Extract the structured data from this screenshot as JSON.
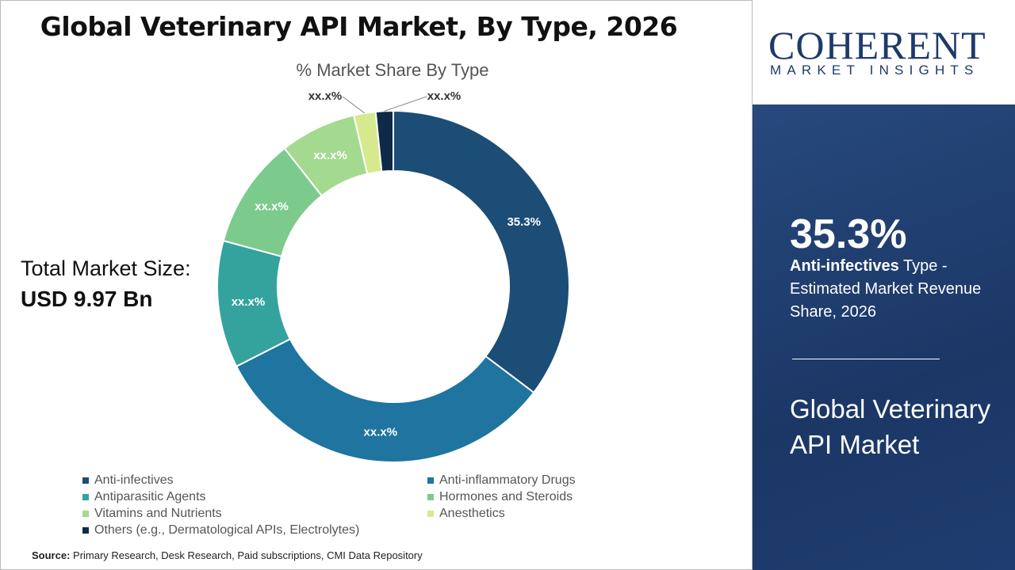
{
  "header": {
    "title": "Global Veterinary API Market, By Type, 2026"
  },
  "total": {
    "label": "Total Market Size:",
    "value": "USD 9.97 Bn"
  },
  "source": {
    "label": "Source:",
    "text": "Primary Research, Desk Research, Paid subscriptions, CMI Data Repository"
  },
  "logo": {
    "name": "COHERENT",
    "tagline": "MARKET INSIGHTS"
  },
  "panel": {
    "value": "35.3%",
    "segment": "Anti-infectives",
    "desc": "Type - Estimated Market Revenue Share, 2026",
    "market": "Global Veterinary API Market"
  },
  "chart_data": {
    "type": "pie",
    "donut": true,
    "title": "% Market Share By Type",
    "categories": [
      "Anti-infectives",
      "Anti-inflammatory Drugs",
      "Antiparasitic Agents",
      "Hormones and Steroids",
      "Vitamins and Nutrients",
      "Anesthetics",
      "Others (e.g., Dermatological APIs, Electrolytes)"
    ],
    "values": [
      35.3,
      32.2,
      11.7,
      10.2,
      7.0,
      2.0,
      1.6
    ],
    "data_labels": [
      "35.3%",
      "xx.x%",
      "xx.x%",
      "xx.x%",
      "xx.x%",
      "xx.x%",
      "xx.x%"
    ],
    "colors": [
      "#1b4d76",
      "#1f74a0",
      "#34a39e",
      "#7ccb8d",
      "#a4da8f",
      "#d6e98c",
      "#0e2a47"
    ],
    "legend": "bottom"
  }
}
